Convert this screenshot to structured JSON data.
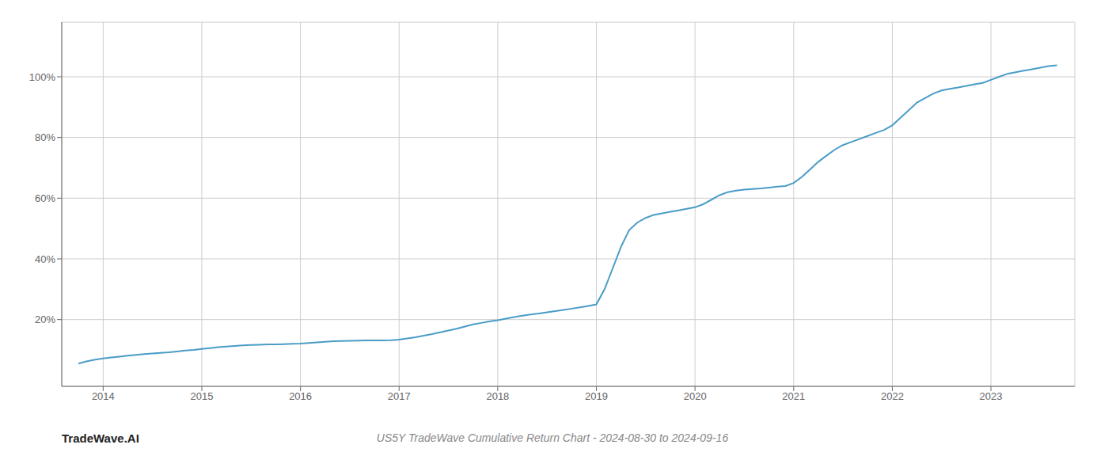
{
  "chart_data": {
    "type": "line",
    "title": "US5Y TradeWave Cumulative Return Chart - 2024-08-30 to 2024-09-16",
    "annotations": [
      "TradeWave.AI"
    ],
    "color": "#4a9cc7",
    "grid": true,
    "x": [
      2013.75,
      2013.83,
      2013.92,
      2014.0,
      2014.083,
      2014.167,
      2014.25,
      2014.333,
      2014.417,
      2014.5,
      2014.583,
      2014.667,
      2014.75,
      2014.833,
      2014.917,
      2015.0,
      2015.083,
      2015.167,
      2015.25,
      2015.333,
      2015.417,
      2015.5,
      2015.583,
      2015.667,
      2015.75,
      2015.833,
      2015.917,
      2016.0,
      2016.083,
      2016.167,
      2016.25,
      2016.333,
      2016.417,
      2016.5,
      2016.583,
      2016.667,
      2016.75,
      2016.833,
      2016.917,
      2017.0,
      2017.083,
      2017.167,
      2017.25,
      2017.333,
      2017.417,
      2017.5,
      2017.583,
      2017.667,
      2017.75,
      2017.833,
      2017.917,
      2018.0,
      2018.083,
      2018.167,
      2018.25,
      2018.333,
      2018.417,
      2018.5,
      2018.583,
      2018.667,
      2018.75,
      2018.833,
      2018.917,
      2019.0,
      2019.083,
      2019.167,
      2019.25,
      2019.333,
      2019.417,
      2019.5,
      2019.583,
      2019.667,
      2019.75,
      2019.833,
      2019.917,
      2020.0,
      2020.083,
      2020.167,
      2020.25,
      2020.333,
      2020.417,
      2020.5,
      2020.583,
      2020.667,
      2020.75,
      2020.833,
      2020.917,
      2021.0,
      2021.083,
      2021.167,
      2021.25,
      2021.333,
      2021.417,
      2021.5,
      2021.583,
      2021.667,
      2021.75,
      2021.833,
      2021.917,
      2022.0,
      2022.083,
      2022.167,
      2022.25,
      2022.333,
      2022.417,
      2022.5,
      2022.583,
      2022.667,
      2022.75,
      2022.833,
      2022.917,
      2023.0,
      2023.083,
      2023.167,
      2023.25,
      2023.333,
      2023.417,
      2023.5,
      2023.583,
      2023.67
    ],
    "values": [
      5.5,
      6.2,
      6.8,
      7.2,
      7.5,
      7.8,
      8.1,
      8.4,
      8.6,
      8.8,
      9.0,
      9.2,
      9.5,
      9.8,
      10.0,
      10.3,
      10.6,
      10.9,
      11.1,
      11.3,
      11.5,
      11.6,
      11.7,
      11.8,
      11.85,
      11.9,
      12.0,
      12.1,
      12.3,
      12.5,
      12.7,
      12.85,
      12.95,
      13.0,
      13.05,
      13.1,
      13.1,
      13.15,
      13.2,
      13.4,
      13.8,
      14.2,
      14.7,
      15.2,
      15.8,
      16.4,
      17.0,
      17.7,
      18.4,
      18.9,
      19.4,
      19.8,
      20.3,
      20.8,
      21.3,
      21.7,
      22.0,
      22.4,
      22.8,
      23.2,
      23.6,
      24.0,
      24.5,
      25.0,
      30.0,
      37.0,
      44.0,
      49.5,
      52.0,
      53.5,
      54.5,
      55.0,
      55.5,
      56.0,
      56.5,
      57.0,
      58.0,
      59.5,
      61.0,
      62.0,
      62.5,
      62.8,
      63.0,
      63.2,
      63.5,
      63.8,
      64.0,
      65.0,
      67.0,
      69.5,
      72.0,
      74.0,
      76.0,
      77.5,
      78.5,
      79.5,
      80.5,
      81.5,
      82.5,
      84.0,
      86.5,
      89.0,
      91.5,
      93.0,
      94.5,
      95.5,
      96.0,
      96.5,
      97.0,
      97.5,
      98.0,
      99.0,
      100.0,
      101.0,
      101.5,
      102.0,
      102.5,
      103.0,
      103.5,
      103.8
    ],
    "xlim": [
      2013.58,
      2023.85
    ],
    "xticks": [
      2014,
      2015,
      2016,
      2017,
      2018,
      2019,
      2020,
      2021,
      2022,
      2023
    ],
    "ylim": [
      -2,
      118
    ],
    "yticks": [
      {
        "value": 20,
        "label": "20%"
      },
      {
        "value": 40,
        "label": "40%"
      },
      {
        "value": 60,
        "label": "60%"
      },
      {
        "value": 80,
        "label": "80%"
      },
      {
        "value": 100,
        "label": "100%"
      }
    ]
  }
}
